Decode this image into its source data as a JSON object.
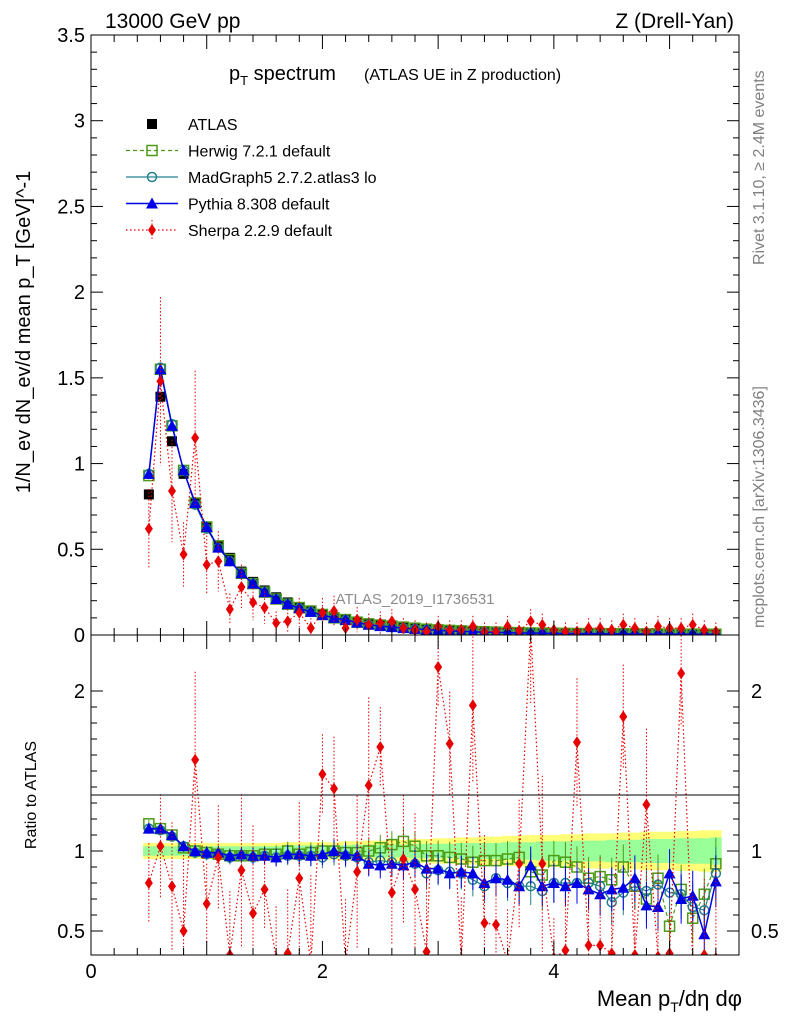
{
  "header": {
    "left": "13000 GeV pp",
    "right": "Z (Drell-Yan)"
  },
  "side_labels": {
    "rivet": "Rivet 3.1.10, ≥ 2.4M events",
    "mcplots": "mcplots.cern.ch [arXiv:1306.3436]"
  },
  "chart_data": [
    {
      "type": "scatter",
      "panel": "main",
      "title": "p_T spectrum",
      "title_main": "p",
      "title_sub": "T",
      "title_rest": " spectrum",
      "title_note": "(ATLAS UE in Z production)",
      "ylabel": "1/N_ev dN_ev/d mean p_T [GeV]^-1",
      "analysis_label": "ATLAS_2019_I1736531",
      "xlim": [
        0,
        5.6
      ],
      "ylim": [
        0,
        3.5
      ],
      "yticks": [
        "0",
        "0.5",
        "1",
        "1.5",
        "2",
        "2.5",
        "3",
        "3.5"
      ],
      "grid": false,
      "legend_position": "top-left",
      "x": [
        0.5,
        0.6,
        0.7,
        0.8,
        0.9,
        1.0,
        1.1,
        1.2,
        1.3,
        1.4,
        1.5,
        1.6,
        1.7,
        1.8,
        1.9,
        2.0,
        2.1,
        2.2,
        2.3,
        2.4,
        2.5,
        2.6,
        2.7,
        2.8,
        2.9,
        3.0,
        3.1,
        3.2,
        3.3,
        3.4,
        3.5,
        3.6,
        3.7,
        3.8,
        3.9,
        4.0,
        4.1,
        4.2,
        4.3,
        4.4,
        4.5,
        4.6,
        4.7,
        4.8,
        4.9,
        5.0,
        5.1,
        5.2,
        5.3,
        5.4
      ],
      "series": [
        {
          "name": "ATLAS",
          "style": "data",
          "color": "#000000",
          "values": [
            0.82,
            1.39,
            1.13,
            0.94,
            0.77,
            0.63,
            0.52,
            0.45,
            0.37,
            0.31,
            0.26,
            0.22,
            0.19,
            0.16,
            0.14,
            0.12,
            0.1,
            0.09,
            0.075,
            0.065,
            0.057,
            0.05,
            0.044,
            0.039,
            0.035,
            0.031,
            0.028,
            0.025,
            0.022,
            0.02,
            0.018,
            0.016,
            0.015,
            0.014,
            0.013,
            0.012,
            0.011,
            0.01,
            0.0095,
            0.009,
            0.0085,
            0.008,
            0.0075,
            0.007,
            0.0065,
            0.006,
            0.0058,
            0.0055,
            0.0052,
            0.005
          ]
        },
        {
          "name": "Herwig 7.2.1 default",
          "style": "open-square",
          "color": "#4c9a17",
          "values": [
            0.93,
            1.55,
            1.22,
            0.96,
            0.77,
            0.63,
            0.52,
            0.44,
            0.36,
            0.3,
            0.25,
            0.21,
            0.18,
            0.16,
            0.14,
            0.12,
            0.1,
            0.09,
            0.075,
            0.065,
            0.058,
            0.052,
            0.046,
            0.04,
            0.034,
            0.03,
            0.027,
            0.024,
            0.021,
            0.019,
            0.017,
            0.015,
            0.014,
            0.012,
            0.011,
            0.0105,
            0.0098,
            0.009,
            0.0085,
            0.008,
            0.0075,
            0.0072,
            0.0068,
            0.0065,
            0.006,
            0.0055,
            0.0053,
            0.005,
            0.0048,
            0.0046
          ]
        },
        {
          "name": "MadGraph5 2.7.2.atlas3 lo",
          "style": "open-circle",
          "color": "#23808a",
          "values": [
            0.94,
            1.56,
            1.23,
            0.96,
            0.76,
            0.62,
            0.51,
            0.43,
            0.36,
            0.3,
            0.25,
            0.21,
            0.18,
            0.155,
            0.135,
            0.115,
            0.098,
            0.086,
            0.072,
            0.06,
            0.053,
            0.046,
            0.04,
            0.035,
            0.03,
            0.027,
            0.024,
            0.021,
            0.018,
            0.016,
            0.015,
            0.013,
            0.012,
            0.011,
            0.01,
            0.0095,
            0.009,
            0.0082,
            0.0078,
            0.0072,
            0.0066,
            0.0062,
            0.0058,
            0.0054,
            0.0052,
            0.0048,
            0.0045,
            0.0042,
            0.004,
            0.0038
          ]
        },
        {
          "name": "Pythia 8.308 default",
          "style": "filled-triangle",
          "color": "#0000e6",
          "values": [
            0.94,
            1.55,
            1.22,
            0.96,
            0.77,
            0.63,
            0.51,
            0.43,
            0.36,
            0.3,
            0.25,
            0.21,
            0.18,
            0.156,
            0.135,
            0.116,
            0.1,
            0.088,
            0.072,
            0.06,
            0.052,
            0.046,
            0.04,
            0.036,
            0.031,
            0.027,
            0.024,
            0.021,
            0.019,
            0.016,
            0.015,
            0.013,
            0.012,
            0.0115,
            0.0105,
            0.0098,
            0.009,
            0.0083,
            0.0078,
            0.0072,
            0.0068,
            0.0063,
            0.006,
            0.0056,
            0.0053,
            0.005,
            0.0048,
            0.0045,
            0.0043,
            0.004
          ]
        },
        {
          "name": "Sherpa 2.2.9 default",
          "style": "filled-diamond",
          "color": "#e60000",
          "values": [
            0.62,
            1.48,
            0.84,
            0.47,
            1.15,
            0.41,
            0.43,
            0.15,
            0.28,
            0.19,
            0.16,
            0.07,
            0.08,
            0.13,
            0.04,
            0.13,
            0.14,
            0.04,
            0.09,
            0.06,
            0.07,
            0.08,
            0.04,
            0.03,
            0.02,
            0.05,
            0.03,
            0.03,
            0.05,
            0.02,
            0.02,
            0.05,
            0.025,
            0.08,
            0.06,
            0.03,
            0.02,
            0.02,
            0.04,
            0.04,
            0.03,
            0.06,
            0.04,
            0.02,
            0.05,
            0.04,
            0.04,
            0.06,
            0.03,
            0.02
          ]
        }
      ]
    },
    {
      "type": "scatter",
      "panel": "ratio",
      "ylabel": "Ratio to ATLAS",
      "xlabel": "Mean p_T/dη dφ",
      "xlabel_a": "Mean p",
      "xlabel_sub": "T",
      "xlabel_b": "/dη dφ",
      "xlim": [
        0,
        5.6
      ],
      "ylim": [
        0.35,
        2.35
      ],
      "xticks": [
        "0",
        "2",
        "4"
      ],
      "yticks": [
        "0.5",
        "1",
        "2"
      ],
      "x": [
        0.5,
        0.6,
        0.7,
        0.8,
        0.9,
        1.0,
        1.1,
        1.2,
        1.3,
        1.4,
        1.5,
        1.6,
        1.7,
        1.8,
        1.9,
        2.0,
        2.1,
        2.2,
        2.3,
        2.4,
        2.5,
        2.6,
        2.7,
        2.8,
        2.9,
        3.0,
        3.1,
        3.2,
        3.3,
        3.4,
        3.5,
        3.6,
        3.7,
        3.8,
        3.9,
        4.0,
        4.1,
        4.2,
        4.3,
        4.4,
        4.5,
        4.6,
        4.7,
        4.8,
        4.9,
        5.0,
        5.1,
        5.2,
        5.3,
        5.4
      ],
      "band_inner_halfwidth": [
        0.03,
        0.03,
        0.03,
        0.03,
        0.03,
        0.03,
        0.03,
        0.03,
        0.03,
        0.03,
        0.03,
        0.03,
        0.035,
        0.035,
        0.035,
        0.035,
        0.035,
        0.035,
        0.04,
        0.04,
        0.04,
        0.04,
        0.04,
        0.045,
        0.045,
        0.045,
        0.045,
        0.05,
        0.05,
        0.05,
        0.05,
        0.055,
        0.055,
        0.055,
        0.06,
        0.06,
        0.06,
        0.065,
        0.065,
        0.065,
        0.07,
        0.07,
        0.07,
        0.075,
        0.075,
        0.075,
        0.08,
        0.08,
        0.08,
        0.085
      ],
      "band_outer_halfwidth": [
        0.05,
        0.05,
        0.05,
        0.05,
        0.05,
        0.05,
        0.05,
        0.05,
        0.05,
        0.05,
        0.05,
        0.05,
        0.055,
        0.055,
        0.055,
        0.055,
        0.055,
        0.06,
        0.06,
        0.065,
        0.065,
        0.07,
        0.07,
        0.075,
        0.075,
        0.08,
        0.08,
        0.085,
        0.085,
        0.09,
        0.09,
        0.095,
        0.095,
        0.1,
        0.1,
        0.1,
        0.105,
        0.105,
        0.11,
        0.11,
        0.11,
        0.115,
        0.115,
        0.12,
        0.12,
        0.12,
        0.125,
        0.125,
        0.13,
        0.13
      ],
      "series": [
        {
          "name": "Herwig 7.2.1 default",
          "style": "open-square",
          "color": "#4c9a17",
          "values": [
            1.17,
            1.14,
            1.1,
            1.02,
            1.0,
            0.99,
            0.98,
            0.97,
            0.97,
            0.97,
            0.98,
            0.98,
            1.0,
            0.98,
            0.99,
            1.0,
            1.0,
            0.99,
            0.99,
            1.0,
            1.02,
            1.04,
            1.06,
            1.03,
            0.97,
            0.97,
            0.96,
            0.95,
            0.93,
            0.94,
            0.94,
            0.95,
            0.96,
            0.87,
            0.85,
            0.94,
            0.93,
            0.9,
            0.83,
            0.84,
            0.82,
            0.9,
            0.78,
            0.7,
            0.83,
            0.53,
            0.76,
            0.58,
            0.73,
            0.92
          ]
        },
        {
          "name": "MadGraph5 2.7.2.atlas3 lo",
          "style": "open-circle",
          "color": "#23808a",
          "values": [
            1.14,
            1.13,
            1.09,
            1.03,
            0.99,
            0.98,
            0.98,
            0.96,
            0.97,
            0.96,
            0.97,
            0.96,
            0.97,
            0.97,
            0.97,
            0.96,
            0.98,
            0.97,
            0.96,
            0.93,
            0.94,
            0.93,
            0.92,
            0.92,
            0.86,
            0.88,
            0.87,
            0.86,
            0.82,
            0.78,
            0.83,
            0.8,
            0.78,
            0.78,
            0.75,
            0.8,
            0.8,
            0.8,
            0.8,
            0.78,
            0.68,
            0.74,
            0.78,
            0.75,
            0.79,
            0.74,
            0.73,
            0.65,
            0.63,
            0.86
          ]
        },
        {
          "name": "Pythia 8.308 default",
          "style": "filled-triangle",
          "color": "#0000e6",
          "values": [
            1.14,
            1.14,
            1.1,
            1.03,
            1.0,
            0.99,
            0.99,
            0.97,
            0.98,
            0.97,
            0.97,
            0.96,
            0.98,
            0.98,
            0.97,
            0.98,
            1.0,
            0.98,
            0.97,
            0.92,
            0.91,
            0.92,
            0.91,
            0.93,
            0.89,
            0.89,
            0.86,
            0.87,
            0.86,
            0.8,
            0.83,
            0.82,
            0.78,
            0.91,
            0.78,
            0.8,
            0.78,
            0.8,
            0.76,
            0.73,
            0.76,
            0.77,
            0.83,
            0.66,
            0.65,
            0.86,
            0.7,
            0.72,
            0.48,
            0.81
          ]
        },
        {
          "name": "Sherpa 2.2.9 default",
          "style": "filled-diamond",
          "color": "#e60000",
          "values": [
            0.8,
            1.03,
            0.78,
            0.5,
            1.57,
            0.67,
            0.96,
            0.35,
            0.88,
            0.61,
            0.76,
            0.33,
            0.36,
            0.83,
            0.3,
            1.48,
            1.39,
            0.3,
            0.87,
            1.41,
            1.65,
            0.74,
            0.95,
            0.76,
            0.37,
            2.15,
            1.67,
            0.31,
            1.91,
            0.55,
            0.54,
            0.31,
            0.92,
            2.4,
            0.92,
            0.33,
            0.38,
            1.68,
            0.41,
            0.41,
            0.36,
            1.84,
            0.35,
            1.29,
            0.34,
            0.36,
            2.11,
            0.32,
            0.35,
            0.33
          ]
        }
      ]
    }
  ]
}
